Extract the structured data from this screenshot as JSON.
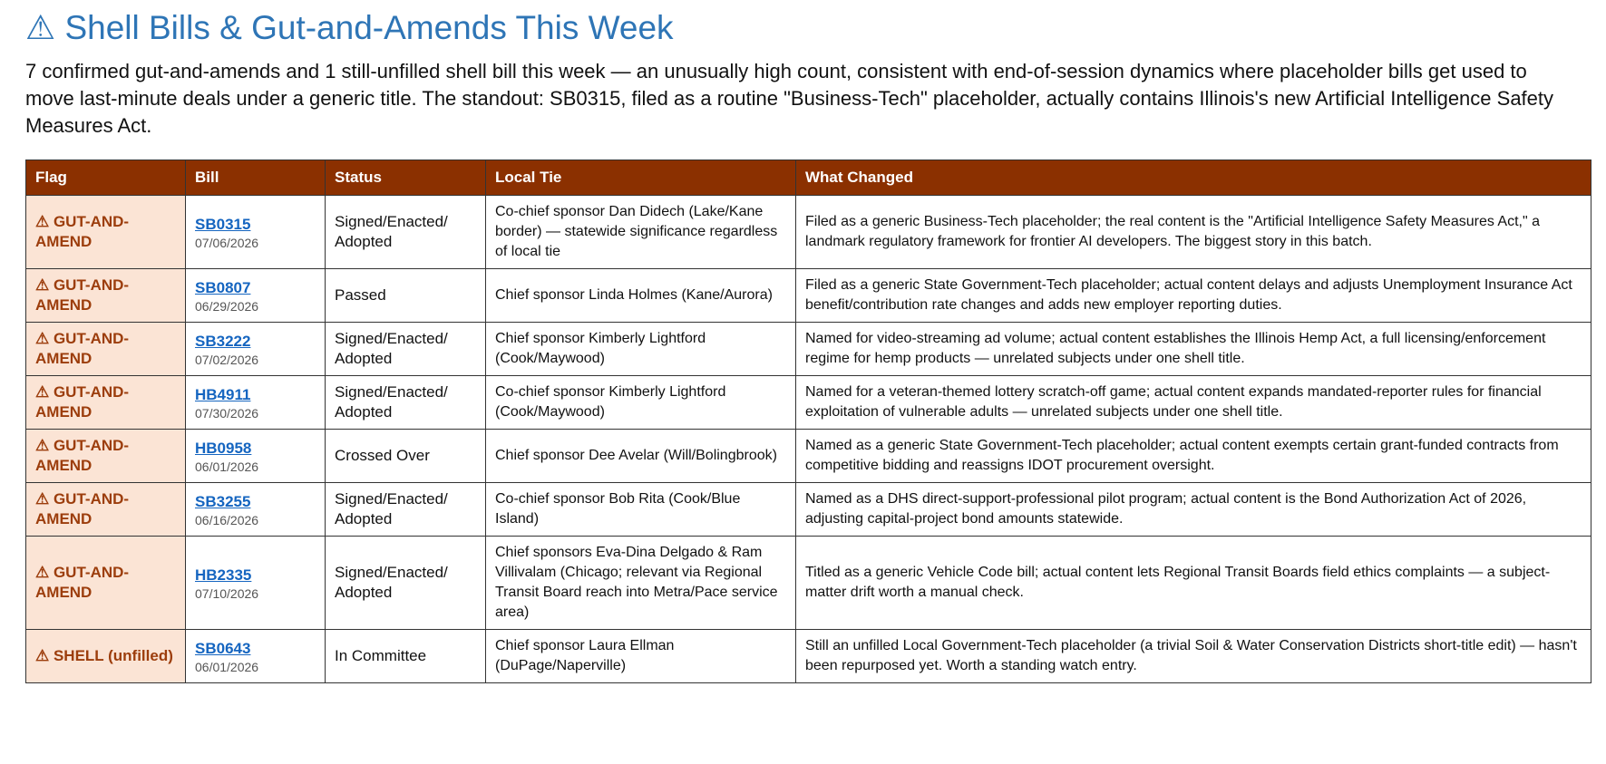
{
  "header": {
    "title": "⚠ Shell Bills & Gut-and-Amends This Week",
    "summary": "7 confirmed gut-and-amends and 1 still-unfilled shell bill this week — an unusually high count, consistent with end-of-session dynamics where placeholder bills get used to move last-minute deals under a generic title. The standout: SB0315, filed as a routine \"Business-Tech\" placeholder, actually contains Illinois's new Artificial Intelligence Safety Measures Act."
  },
  "table": {
    "columns": [
      "Flag",
      "Bill",
      "Status",
      "Local Tie",
      "What Changed"
    ],
    "rows": [
      {
        "flag": "⚠ GUT-AND-AMEND",
        "bill": "SB0315",
        "date": "07/06/2026",
        "status": "Signed/Enacted/ Adopted",
        "local_tie": "Co-chief sponsor Dan Didech (Lake/Kane border) — statewide significance regardless of local tie",
        "what_changed": "Filed as a generic Business-Tech placeholder; the real content is the \"Artificial Intelligence Safety Measures Act,\" a landmark regulatory framework for frontier AI developers. The biggest story in this batch."
      },
      {
        "flag": "⚠ GUT-AND-AMEND",
        "bill": "SB0807",
        "date": "06/29/2026",
        "status": "Passed",
        "local_tie": "Chief sponsor Linda Holmes (Kane/Aurora)",
        "what_changed": "Filed as a generic State Government-Tech placeholder; actual content delays and adjusts Unemployment Insurance Act benefit/contribution rate changes and adds new employer reporting duties."
      },
      {
        "flag": "⚠ GUT-AND-AMEND",
        "bill": "SB3222",
        "date": "07/02/2026",
        "status": "Signed/Enacted/ Adopted",
        "local_tie": "Chief sponsor Kimberly Lightford (Cook/Maywood)",
        "what_changed": "Named for video-streaming ad volume; actual content establishes the Illinois Hemp Act, a full licensing/enforcement regime for hemp products — unrelated subjects under one shell title."
      },
      {
        "flag": "⚠ GUT-AND-AMEND",
        "bill": "HB4911",
        "date": "07/30/2026",
        "status": "Signed/Enacted/ Adopted",
        "local_tie": "Co-chief sponsor Kimberly Lightford (Cook/Maywood)",
        "what_changed": "Named for a veteran-themed lottery scratch-off game; actual content expands mandated-reporter rules for financial exploitation of vulnerable adults — unrelated subjects under one shell title."
      },
      {
        "flag": "⚠ GUT-AND-AMEND",
        "bill": "HB0958",
        "date": "06/01/2026",
        "status": "Crossed Over",
        "local_tie": "Chief sponsor Dee Avelar (Will/Bolingbrook)",
        "what_changed": "Named as a generic State Government-Tech placeholder; actual content exempts certain grant-funded contracts from competitive bidding and reassigns IDOT procurement oversight."
      },
      {
        "flag": "⚠ GUT-AND-AMEND",
        "bill": "SB3255",
        "date": "06/16/2026",
        "status": "Signed/Enacted/ Adopted",
        "local_tie": "Co-chief sponsor Bob Rita (Cook/Blue Island)",
        "what_changed": "Named as a DHS direct-support-professional pilot program; actual content is the Bond Authorization Act of 2026, adjusting capital-project bond amounts statewide."
      },
      {
        "flag": "⚠ GUT-AND-AMEND",
        "bill": "HB2335",
        "date": "07/10/2026",
        "status": "Signed/Enacted/ Adopted",
        "local_tie": "Chief sponsors Eva-Dina Delgado & Ram Villivalam (Chicago; relevant via Regional Transit Board reach into Metra/Pace service area)",
        "what_changed": "Titled as a generic Vehicle Code bill; actual content lets Regional Transit Boards field ethics complaints — a subject-matter drift worth a manual check."
      },
      {
        "flag": "⚠ SHELL (unfilled)",
        "bill": "SB0643",
        "date": "06/01/2026",
        "status": "In Committee",
        "local_tie": "Chief sponsor Laura Ellman (DuPage/Naperville)",
        "what_changed": "Still an unfilled Local Government-Tech placeholder (a trivial Soil & Water Conservation Districts short-title edit) — hasn't been repurposed yet. Worth a standing watch entry."
      }
    ]
  }
}
